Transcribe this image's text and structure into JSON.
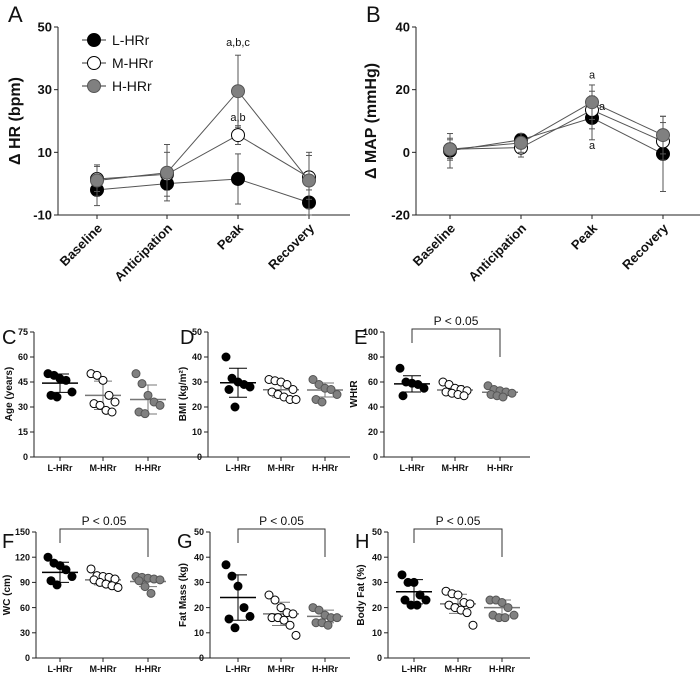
{
  "colors": {
    "L-HRr": "#000000",
    "M-HRr": "#ffffff",
    "H-HRr": "#808080",
    "stroke": "#333333"
  },
  "chart_data": [
    {
      "panel": "A",
      "type": "line",
      "ylabel": "Δ HR (bpm)",
      "ylim": [
        -10,
        50
      ],
      "yticks": [
        -10,
        10,
        30,
        50
      ],
      "categories": [
        "Baseline",
        "Anticipation",
        "Peak",
        "Recovery"
      ],
      "legend": "top-left",
      "series": [
        {
          "name": "L-HRr",
          "values": [
            -2,
            0,
            1.5,
            -6
          ],
          "err": [
            5,
            2,
            8,
            4
          ]
        },
        {
          "name": "M-HRr",
          "values": [
            1.5,
            3,
            15.5,
            2
          ],
          "err": [
            4,
            7,
            3,
            7
          ]
        },
        {
          "name": "H-HRr",
          "values": [
            1,
            3.5,
            29.5,
            1
          ],
          "err": [
            5,
            9,
            11.5,
            9
          ]
        }
      ],
      "annotations": [
        {
          "text": "a,b,c",
          "category": "Peak",
          "value": 44
        },
        {
          "text": "a,b",
          "category": "Peak",
          "value": 20
        }
      ]
    },
    {
      "panel": "B",
      "type": "line",
      "ylabel": "Δ MAP (mmHg)",
      "ylim": [
        -20,
        40
      ],
      "yticks": [
        -20,
        0,
        20,
        40
      ],
      "categories": [
        "Baseline",
        "Anticipation",
        "Peak",
        "Recovery"
      ],
      "series": [
        {
          "name": "L-HRr",
          "values": [
            0.5,
            4,
            11,
            -0.5
          ],
          "err": [
            5.5,
            2,
            7,
            12
          ]
        },
        {
          "name": "M-HRr",
          "values": [
            1,
            1.5,
            13.5,
            3.5
          ],
          "err": [
            3,
            3,
            6,
            6
          ]
        },
        {
          "name": "H-HRr",
          "values": [
            1,
            3,
            16,
            5.5
          ],
          "err": [
            3.5,
            3,
            5.5,
            6
          ]
        }
      ],
      "annotations": [
        {
          "text": "a",
          "category": "Peak",
          "value": 23.5
        },
        {
          "text": "a",
          "category": "Peak",
          "value": 13.5,
          "dx": 1
        },
        {
          "text": "a",
          "category": "Peak",
          "value": 1
        }
      ]
    },
    {
      "panel": "C",
      "type": "scatter",
      "ylabel": "Age (years)",
      "ylim": [
        0,
        75
      ],
      "yticks": [
        0,
        15,
        30,
        45,
        60,
        75
      ],
      "categories": [
        "L-HRr",
        "M-HRr",
        "H-HRr"
      ],
      "groups": [
        {
          "values": [
            50,
            49,
            47,
            46,
            39,
            37,
            36
          ],
          "mean": 44.3,
          "sd": 5.5
        },
        {
          "values": [
            50,
            49,
            46,
            37,
            33,
            32,
            31,
            28,
            27
          ],
          "mean": 37,
          "sd": 8.5
        },
        {
          "values": [
            50,
            44,
            37,
            33,
            31,
            27,
            26
          ],
          "mean": 34.5,
          "sd": 8.7
        }
      ]
    },
    {
      "panel": "D",
      "type": "scatter",
      "ylabel": "BMI (kg/m²)",
      "ylim": [
        0,
        50
      ],
      "yticks": [
        0,
        10,
        20,
        30,
        40,
        50
      ],
      "categories": [
        "L-HRr",
        "M-HRr",
        "H-HRr"
      ],
      "groups": [
        {
          "values": [
            40,
            31.5,
            30,
            29,
            28,
            27,
            20
          ],
          "mean": 29.7,
          "sd": 5.8
        },
        {
          "values": [
            31,
            30.5,
            30,
            29,
            27,
            26,
            25,
            24,
            23,
            23
          ],
          "mean": 26.9,
          "sd": 3
        },
        {
          "values": [
            31,
            29,
            27.5,
            27,
            25,
            23,
            22
          ],
          "mean": 26.8,
          "sd": 2.8
        }
      ]
    },
    {
      "panel": "E",
      "type": "scatter",
      "ylabel": "WHtR",
      "ylim": [
        0,
        100
      ],
      "yticks": [
        0,
        20,
        40,
        60,
        80,
        100
      ],
      "categories": [
        "L-HRr",
        "M-HRr",
        "H-HRr"
      ],
      "groups": [
        {
          "values": [
            71,
            60,
            59,
            58,
            55,
            49
          ],
          "mean": 58.5,
          "sd": 6.5
        },
        {
          "values": [
            60,
            58,
            55,
            54,
            53,
            52,
            51,
            50,
            49
          ],
          "mean": 53.6,
          "sd": 3.5
        },
        {
          "values": [
            57,
            54,
            53,
            52,
            51,
            50,
            49,
            48
          ],
          "mean": 51.8,
          "sd": 2.5
        }
      ],
      "significance": {
        "text": "P < 0.05",
        "from": "L-HRr",
        "to": "H-HRr"
      }
    },
    {
      "panel": "F",
      "type": "scatter",
      "ylabel": "WC (cm)",
      "ylim": [
        0,
        150
      ],
      "yticks": [
        0,
        30,
        60,
        90,
        120,
        150
      ],
      "categories": [
        "L-HRr",
        "M-HRr",
        "H-HRr"
      ],
      "groups": [
        {
          "values": [
            120,
            113,
            110,
            105,
            97,
            92,
            87
          ],
          "mean": 102,
          "sd": 12
        },
        {
          "values": [
            106,
            98,
            97,
            96,
            94,
            93,
            90,
            88,
            86,
            84
          ],
          "mean": 93,
          "sd": 6
        },
        {
          "values": [
            97,
            96,
            95,
            94,
            93,
            92,
            85,
            77
          ],
          "mean": 91,
          "sd": 6
        }
      ],
      "significance": {
        "text": "P < 0.05",
        "from": "L-HRr",
        "to": "H-HRr"
      }
    },
    {
      "panel": "G",
      "type": "scatter",
      "ylabel": "Fat Mass (kg)",
      "ylim": [
        0,
        50
      ],
      "yticks": [
        0,
        10,
        20,
        30,
        40,
        50
      ],
      "categories": [
        "L-HRr",
        "M-HRr",
        "H-HRr"
      ],
      "groups": [
        {
          "values": [
            37,
            32.5,
            28.5,
            20,
            16.5,
            15.5,
            12
          ],
          "mean": 24,
          "sd": 9
        },
        {
          "values": [
            25,
            23,
            20,
            18,
            17.5,
            16,
            16,
            15,
            13,
            9
          ],
          "mean": 17.5,
          "sd": 4.6
        },
        {
          "values": [
            20,
            19,
            17,
            16,
            16,
            14,
            14,
            13
          ],
          "mean": 16.5,
          "sd": 2.5
        }
      ],
      "significance": {
        "text": "P < 0.05",
        "from": "L-HRr",
        "to": "H-HRr"
      }
    },
    {
      "panel": "H",
      "type": "scatter",
      "ylabel": "Body Fat (%)",
      "ylim": [
        0,
        50
      ],
      "yticks": [
        0,
        10,
        20,
        30,
        40,
        50
      ],
      "categories": [
        "L-HRr",
        "M-HRr",
        "H-HRr"
      ],
      "groups": [
        {
          "values": [
            33,
            30,
            30,
            25,
            23,
            23,
            21,
            21
          ],
          "mean": 26.3,
          "sd": 4.8
        },
        {
          "values": [
            26.5,
            25.5,
            25,
            22,
            21.5,
            21,
            20,
            19,
            18,
            13
          ],
          "mean": 21.5,
          "sd": 3.8
        },
        {
          "values": [
            23,
            23,
            22,
            20,
            17,
            17,
            16,
            16
          ],
          "mean": 20,
          "sd": 3
        }
      ],
      "significance": {
        "text": "P < 0.05",
        "from": "L-HRr",
        "to": "H-HRr"
      }
    }
  ]
}
